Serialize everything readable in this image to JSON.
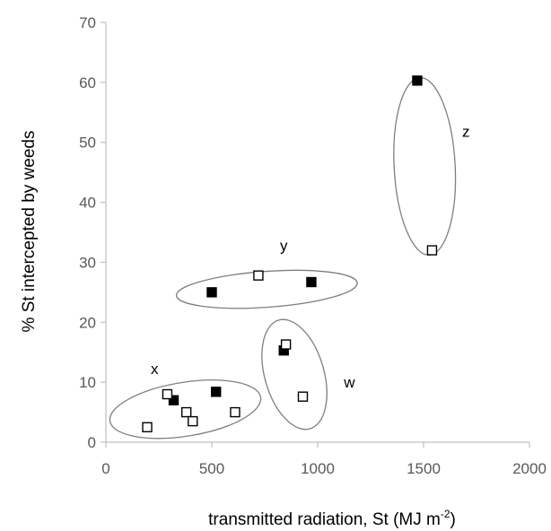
{
  "chart_data": {
    "type": "scatter",
    "xlabel": "transmitted radiation, St (MJ m",
    "xlabel_sup": "-2",
    "xlabel_suffix": ")",
    "ylabel": "% St intercepted by weeds",
    "xlim": [
      0,
      2000
    ],
    "ylim": [
      0,
      70
    ],
    "xticks": [
      0,
      500,
      1000,
      1500,
      2000
    ],
    "yticks": [
      0,
      10,
      20,
      30,
      40,
      50,
      60,
      70
    ],
    "grid": false,
    "colors": {
      "axis": "#bfbfbf",
      "ellipse": "#7f7f7f",
      "marker": "#000000",
      "tick_text": "#595959"
    },
    "series": [
      {
        "marker": "filled-square",
        "points": [
          [
            320,
            7
          ],
          [
            520,
            8.4
          ],
          [
            500,
            25
          ],
          [
            970,
            26.7
          ],
          [
            840,
            15.3
          ],
          [
            1470,
            60.3
          ]
        ]
      },
      {
        "marker": "open-square",
        "points": [
          [
            195,
            2.5
          ],
          [
            290,
            8
          ],
          [
            380,
            5
          ],
          [
            410,
            3.5
          ],
          [
            610,
            5
          ],
          [
            720,
            27.8
          ],
          [
            850,
            16.3
          ],
          [
            930,
            7.6
          ],
          [
            1540,
            32
          ]
        ]
      }
    ],
    "groups": [
      {
        "label": "x",
        "center": [
          375,
          5.5
        ],
        "label_at": [
          230,
          12.3
        ]
      },
      {
        "label": "y",
        "center": [
          760,
          25.5
        ],
        "label_at": [
          840,
          32.8
        ]
      },
      {
        "label": "w",
        "center": [
          890,
          11.3
        ],
        "label_at": [
          1150,
          10
        ]
      },
      {
        "label": "z",
        "center": [
          1505,
          46
        ],
        "label_at": [
          1700,
          51.8
        ]
      }
    ]
  }
}
